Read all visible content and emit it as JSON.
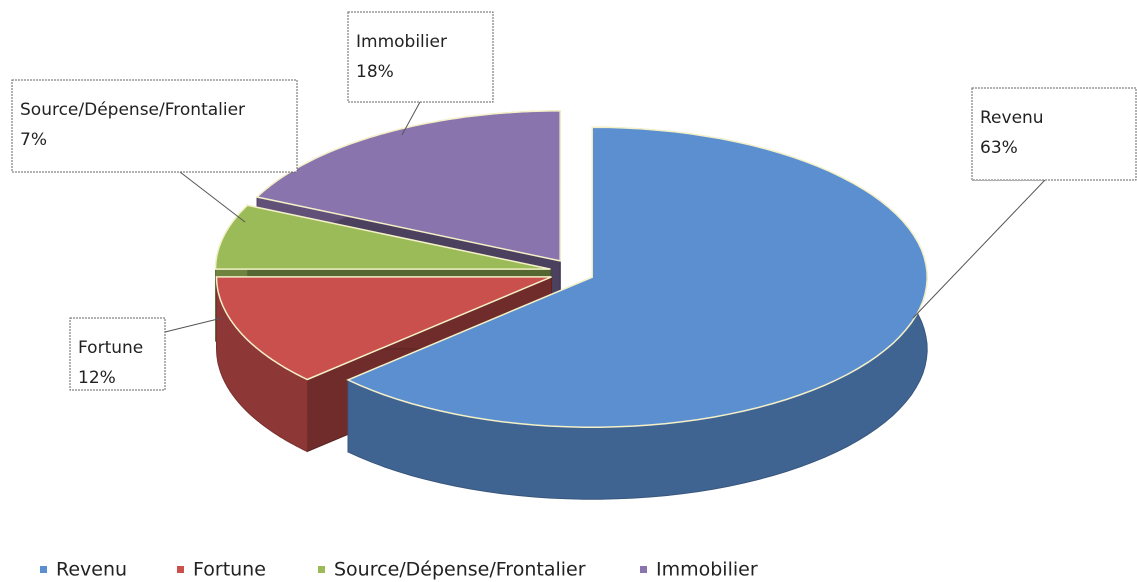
{
  "chart_data": {
    "type": "pie",
    "categories": [
      "Revenu",
      "Fortune",
      "Source/Dépense/Frontalier",
      "Immobilier"
    ],
    "values": [
      63,
      12,
      7,
      18
    ],
    "value_labels": [
      "63%",
      "12%",
      "7%",
      "18%"
    ],
    "colors": [
      "#5b8fd0",
      "#c9504d",
      "#9bbb59",
      "#8a74ad"
    ],
    "legend": "bottom"
  }
}
